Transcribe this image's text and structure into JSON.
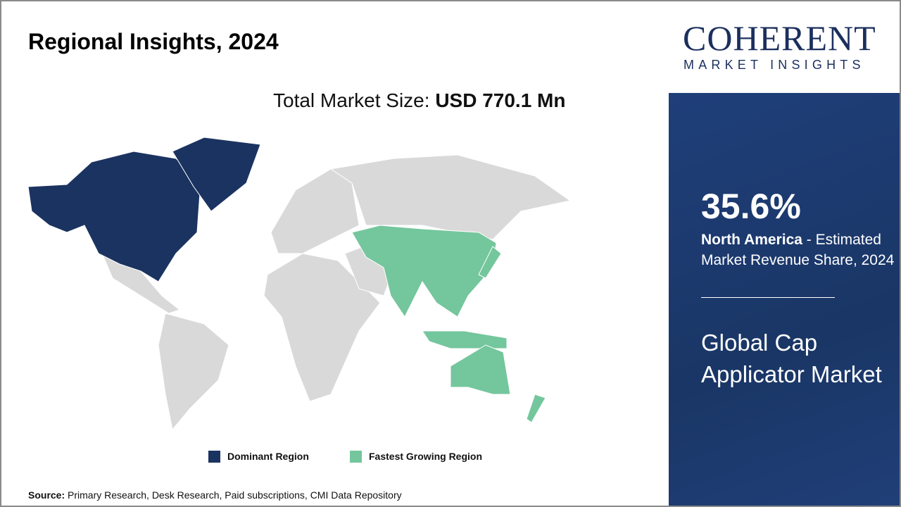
{
  "title": "Regional Insights, 2024",
  "total": {
    "label": "Total Market Size:",
    "value": "USD 770.1 Mn"
  },
  "legend": [
    {
      "label": "Dominant Region",
      "color": "#1b3360"
    },
    {
      "label": "Fastest Growing Region",
      "color": "#74c69d"
    }
  ],
  "map": {
    "dominant_region": "North America",
    "fastest_growing_region": "Asia Pacific",
    "other_color": "#d9d9d9"
  },
  "source": {
    "label": "Source:",
    "text": " Primary Research, Desk Research, Paid subscriptions, CMI Data Repository"
  },
  "logo": {
    "name": "COHERENT",
    "tagline": "MARKET INSIGHTS"
  },
  "panel": {
    "share": "35.6%",
    "region": "North America",
    "share_desc": " - Estimated Market Revenue Share, 2024",
    "market": "Global Cap Applicator Market"
  }
}
